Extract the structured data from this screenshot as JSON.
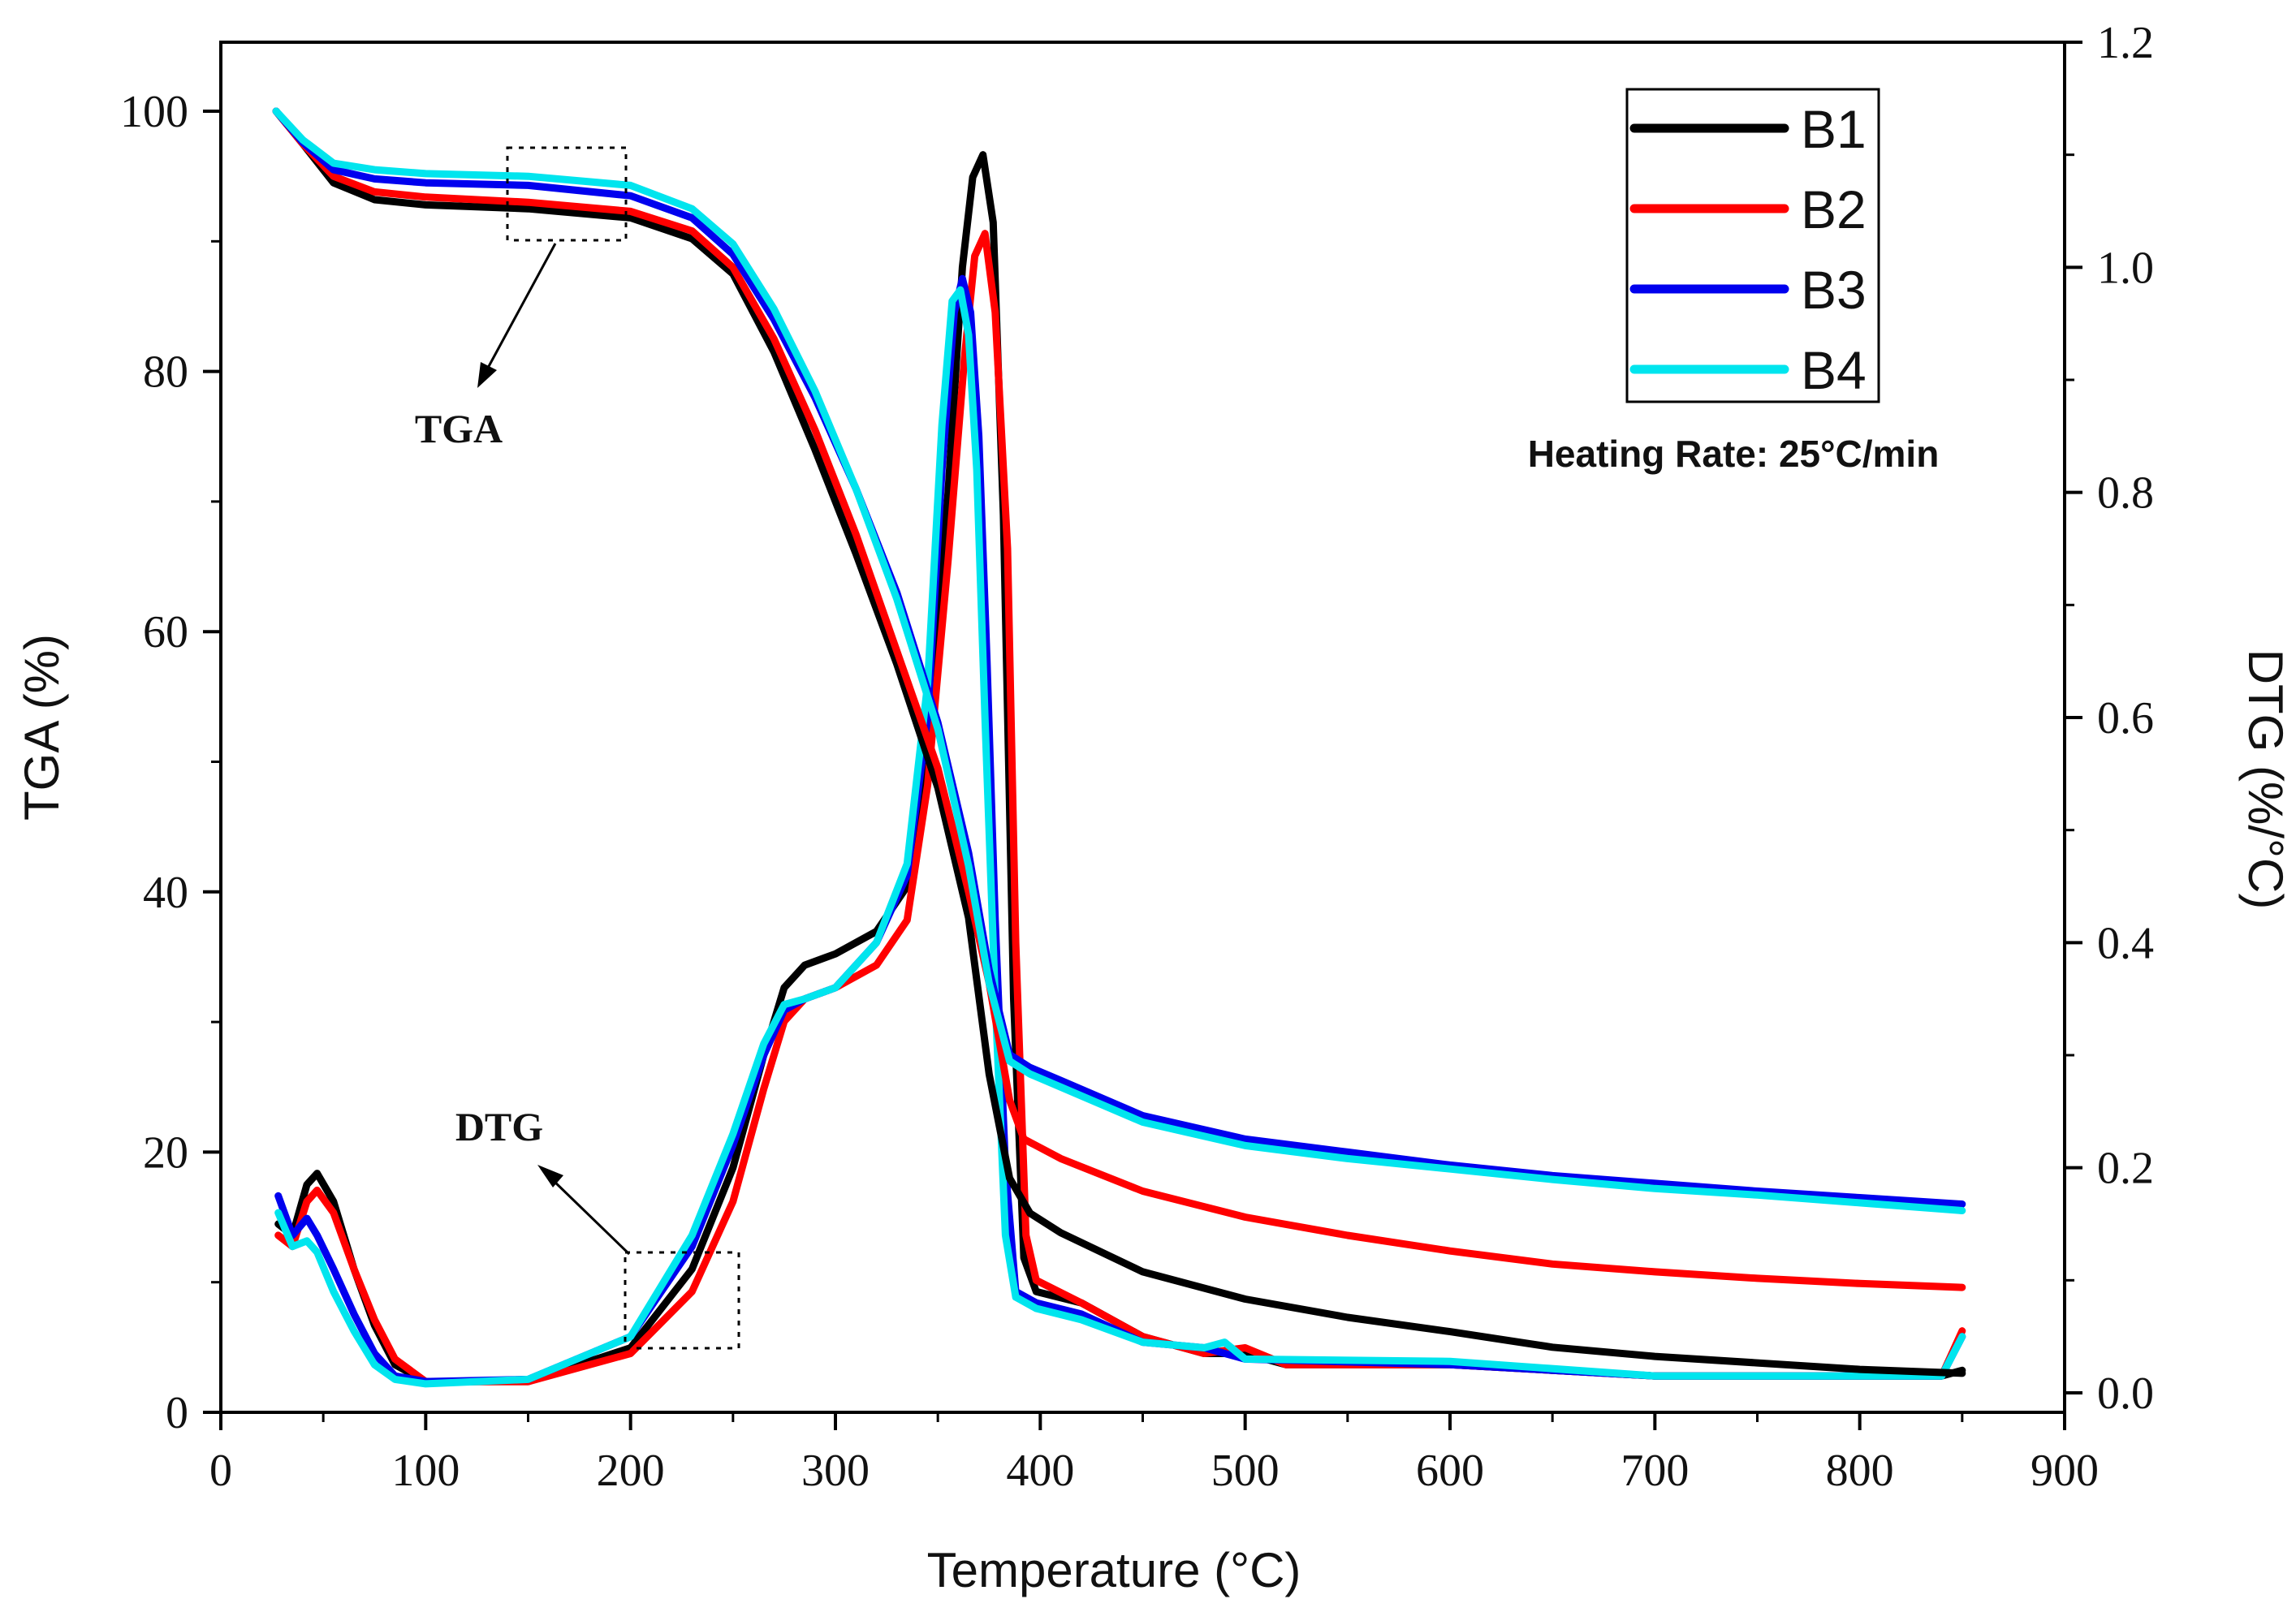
{
  "chart_data": {
    "type": "line",
    "xlabel": "Temperature (°C)",
    "ylabel_left": "TGA (%)",
    "ylabel_right": "DTG (%/°C)",
    "xlim": [
      0,
      900
    ],
    "ylim_left": [
      0,
      100
    ],
    "ylim_right": [
      0,
      1.2
    ],
    "x_ticks": [
      "0",
      "100",
      "200",
      "300",
      "400",
      "500",
      "600",
      "700",
      "800",
      "900"
    ],
    "y_left_ticks": [
      "0",
      "20",
      "40",
      "60",
      "80",
      "100"
    ],
    "y_right_ticks": [
      "0.0",
      "0.2",
      "0.4",
      "0.6",
      "0.8",
      "1.0",
      "1.2"
    ],
    "grid": false,
    "legend_position": "top-right",
    "annotations": {
      "tga": "TGA",
      "dtg": "DTG",
      "heating_rate": "Heating Rate: 25°C/min"
    },
    "series": [
      {
        "name": "B1",
        "color": "#000000",
        "tga": [
          [
            27,
            100
          ],
          [
            40,
            97.5
          ],
          [
            55,
            94.5
          ],
          [
            75,
            93.2
          ],
          [
            100,
            92.8
          ],
          [
            150,
            92.5
          ],
          [
            200,
            91.8
          ],
          [
            230,
            90.2
          ],
          [
            250,
            87.5
          ],
          [
            270,
            81.5
          ],
          [
            290,
            74
          ],
          [
            310,
            66
          ],
          [
            330,
            57.5
          ],
          [
            350,
            48
          ],
          [
            365,
            38
          ],
          [
            375,
            26
          ],
          [
            385,
            18
          ],
          [
            395,
            15.3
          ],
          [
            410,
            13.8
          ],
          [
            450,
            10.8
          ],
          [
            500,
            8.7
          ],
          [
            550,
            7.3
          ],
          [
            600,
            6.2
          ],
          [
            650,
            5
          ],
          [
            700,
            4.3
          ],
          [
            750,
            3.8
          ],
          [
            800,
            3.3
          ],
          [
            850,
            3
          ]
        ],
        "dtg": [
          [
            28,
            0.15
          ],
          [
            35,
            0.14
          ],
          [
            42,
            0.185
          ],
          [
            47,
            0.195
          ],
          [
            55,
            0.17
          ],
          [
            65,
            0.11
          ],
          [
            75,
            0.06
          ],
          [
            85,
            0.025
          ],
          [
            100,
            0.01
          ],
          [
            150,
            0.01
          ],
          [
            200,
            0.04
          ],
          [
            230,
            0.11
          ],
          [
            250,
            0.2
          ],
          [
            265,
            0.3
          ],
          [
            275,
            0.36
          ],
          [
            285,
            0.38
          ],
          [
            300,
            0.39
          ],
          [
            320,
            0.41
          ],
          [
            335,
            0.45
          ],
          [
            345,
            0.58
          ],
          [
            355,
            0.8
          ],
          [
            362,
            1
          ],
          [
            367,
            1.08
          ],
          [
            372,
            1.1
          ],
          [
            377,
            1.04
          ],
          [
            382,
            0.78
          ],
          [
            387,
            0.35
          ],
          [
            392,
            0.12
          ],
          [
            398,
            0.09
          ],
          [
            420,
            0.08
          ],
          [
            450,
            0.05
          ],
          [
            480,
            0.035
          ],
          [
            500,
            0.035
          ],
          [
            520,
            0.025
          ],
          [
            600,
            0.025
          ],
          [
            700,
            0.015
          ],
          [
            800,
            0.015
          ],
          [
            840,
            0.015
          ],
          [
            850,
            0.02
          ]
        ]
      },
      {
        "name": "B2",
        "color": "#ff0000",
        "tga": [
          [
            27,
            100
          ],
          [
            40,
            97.5
          ],
          [
            55,
            95
          ],
          [
            75,
            93.8
          ],
          [
            100,
            93.4
          ],
          [
            150,
            93
          ],
          [
            200,
            92.3
          ],
          [
            230,
            90.8
          ],
          [
            250,
            88
          ],
          [
            270,
            82.5
          ],
          [
            290,
            75.5
          ],
          [
            310,
            67.5
          ],
          [
            330,
            58.5
          ],
          [
            350,
            49.5
          ],
          [
            365,
            40
          ],
          [
            375,
            33
          ],
          [
            385,
            24
          ],
          [
            392,
            21
          ],
          [
            410,
            19.5
          ],
          [
            450,
            17
          ],
          [
            500,
            15
          ],
          [
            550,
            13.6
          ],
          [
            600,
            12.4
          ],
          [
            650,
            11.4
          ],
          [
            700,
            10.8
          ],
          [
            750,
            10.3
          ],
          [
            800,
            9.9
          ],
          [
            850,
            9.6
          ]
        ],
        "dtg": [
          [
            28,
            0.14
          ],
          [
            35,
            0.13
          ],
          [
            42,
            0.17
          ],
          [
            47,
            0.18
          ],
          [
            55,
            0.16
          ],
          [
            65,
            0.11
          ],
          [
            75,
            0.065
          ],
          [
            85,
            0.03
          ],
          [
            100,
            0.01
          ],
          [
            150,
            0.01
          ],
          [
            200,
            0.035
          ],
          [
            230,
            0.09
          ],
          [
            250,
            0.17
          ],
          [
            265,
            0.27
          ],
          [
            275,
            0.33
          ],
          [
            285,
            0.35
          ],
          [
            300,
            0.36
          ],
          [
            320,
            0.38
          ],
          [
            335,
            0.42
          ],
          [
            345,
            0.54
          ],
          [
            355,
            0.74
          ],
          [
            363,
            0.92
          ],
          [
            368,
            1.01
          ],
          [
            373,
            1.03
          ],
          [
            378,
            0.96
          ],
          [
            384,
            0.75
          ],
          [
            388,
            0.4
          ],
          [
            393,
            0.14
          ],
          [
            398,
            0.1
          ],
          [
            420,
            0.08
          ],
          [
            450,
            0.05
          ],
          [
            480,
            0.035
          ],
          [
            500,
            0.04
          ],
          [
            520,
            0.025
          ],
          [
            600,
            0.025
          ],
          [
            700,
            0.015
          ],
          [
            800,
            0.015
          ],
          [
            840,
            0.015
          ],
          [
            850,
            0.055
          ]
        ]
      },
      {
        "name": "B3",
        "color": "#0000ee",
        "tga": [
          [
            27,
            100
          ],
          [
            40,
            97.6
          ],
          [
            55,
            95.5
          ],
          [
            75,
            94.8
          ],
          [
            100,
            94.5
          ],
          [
            150,
            94.3
          ],
          [
            200,
            93.5
          ],
          [
            230,
            91.8
          ],
          [
            250,
            89
          ],
          [
            270,
            84
          ],
          [
            290,
            78
          ],
          [
            310,
            71
          ],
          [
            330,
            63
          ],
          [
            350,
            53
          ],
          [
            365,
            43
          ],
          [
            375,
            34
          ],
          [
            385,
            27.5
          ],
          [
            395,
            26.5
          ],
          [
            410,
            25.5
          ],
          [
            450,
            22.8
          ],
          [
            500,
            21
          ],
          [
            550,
            20
          ],
          [
            600,
            19
          ],
          [
            650,
            18.2
          ],
          [
            700,
            17.6
          ],
          [
            750,
            17
          ],
          [
            800,
            16.5
          ],
          [
            850,
            16
          ]
        ],
        "dtg": [
          [
            28,
            0.175
          ],
          [
            35,
            0.14
          ],
          [
            42,
            0.155
          ],
          [
            47,
            0.14
          ],
          [
            55,
            0.11
          ],
          [
            65,
            0.07
          ],
          [
            75,
            0.035
          ],
          [
            85,
            0.015
          ],
          [
            100,
            0.01
          ],
          [
            150,
            0.012
          ],
          [
            200,
            0.05
          ],
          [
            230,
            0.13
          ],
          [
            250,
            0.22
          ],
          [
            265,
            0.3
          ],
          [
            275,
            0.34
          ],
          [
            285,
            0.35
          ],
          [
            300,
            0.36
          ],
          [
            320,
            0.4
          ],
          [
            335,
            0.46
          ],
          [
            345,
            0.6
          ],
          [
            352,
            0.82
          ],
          [
            358,
            0.96
          ],
          [
            362,
            0.99
          ],
          [
            366,
            0.96
          ],
          [
            370,
            0.85
          ],
          [
            374,
            0.65
          ],
          [
            378,
            0.42
          ],
          [
            383,
            0.2
          ],
          [
            388,
            0.09
          ],
          [
            398,
            0.08
          ],
          [
            420,
            0.07
          ],
          [
            450,
            0.045
          ],
          [
            480,
            0.04
          ],
          [
            500,
            0.03
          ],
          [
            600,
            0.025
          ],
          [
            700,
            0.015
          ],
          [
            800,
            0.015
          ],
          [
            840,
            0.015
          ],
          [
            850,
            0.05
          ]
        ]
      },
      {
        "name": "B4",
        "color": "#00e5ee",
        "tga": [
          [
            27,
            100
          ],
          [
            40,
            97.8
          ],
          [
            55,
            96
          ],
          [
            75,
            95.5
          ],
          [
            100,
            95.2
          ],
          [
            150,
            95
          ],
          [
            200,
            94.3
          ],
          [
            230,
            92.5
          ],
          [
            250,
            89.8
          ],
          [
            270,
            84.8
          ],
          [
            290,
            78.5
          ],
          [
            310,
            71
          ],
          [
            330,
            62.5
          ],
          [
            350,
            52.5
          ],
          [
            365,
            42
          ],
          [
            375,
            33
          ],
          [
            385,
            27
          ],
          [
            395,
            26
          ],
          [
            410,
            25
          ],
          [
            450,
            22.3
          ],
          [
            500,
            20.5
          ],
          [
            550,
            19.5
          ],
          [
            600,
            18.7
          ],
          [
            650,
            17.9
          ],
          [
            700,
            17.2
          ],
          [
            750,
            16.7
          ],
          [
            800,
            16.1
          ],
          [
            850,
            15.5
          ]
        ],
        "dtg": [
          [
            28,
            0.16
          ],
          [
            35,
            0.13
          ],
          [
            42,
            0.135
          ],
          [
            47,
            0.125
          ],
          [
            55,
            0.09
          ],
          [
            65,
            0.055
          ],
          [
            75,
            0.025
          ],
          [
            85,
            0.012
          ],
          [
            100,
            0.008
          ],
          [
            150,
            0.012
          ],
          [
            200,
            0.05
          ],
          [
            230,
            0.14
          ],
          [
            250,
            0.23
          ],
          [
            265,
            0.31
          ],
          [
            275,
            0.345
          ],
          [
            285,
            0.35
          ],
          [
            300,
            0.36
          ],
          [
            320,
            0.4
          ],
          [
            335,
            0.47
          ],
          [
            345,
            0.63
          ],
          [
            352,
            0.86
          ],
          [
            357,
            0.97
          ],
          [
            361,
            0.98
          ],
          [
            365,
            0.94
          ],
          [
            369,
            0.82
          ],
          [
            373,
            0.6
          ],
          [
            378,
            0.35
          ],
          [
            383,
            0.14
          ],
          [
            388,
            0.085
          ],
          [
            398,
            0.075
          ],
          [
            420,
            0.065
          ],
          [
            450,
            0.045
          ],
          [
            480,
            0.04
          ],
          [
            490,
            0.045
          ],
          [
            500,
            0.03
          ],
          [
            600,
            0.028
          ],
          [
            700,
            0.015
          ],
          [
            800,
            0.015
          ],
          [
            840,
            0.015
          ],
          [
            850,
            0.05
          ]
        ]
      }
    ]
  }
}
